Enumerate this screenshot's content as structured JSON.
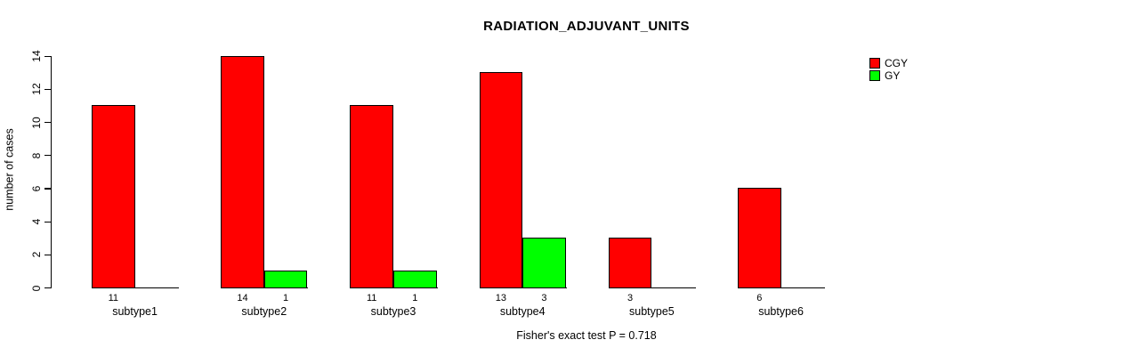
{
  "title": "RADIATION_ADJUVANT_UNITS",
  "footer": "Fisher's exact test P = 0.718",
  "legend": {
    "position": "top-right",
    "items": [
      {
        "label": "CGY",
        "color": "#ff0000"
      },
      {
        "label": "GY",
        "color": "#00ff00"
      }
    ]
  },
  "chart_data": {
    "type": "bar",
    "title": "RADIATION_ADJUVANT_UNITS",
    "xlabel": "",
    "ylabel": "number of cases",
    "categories": [
      "subtype1",
      "subtype2",
      "subtype3",
      "subtype4",
      "subtype5",
      "subtype6"
    ],
    "series": [
      {
        "name": "CGY",
        "color": "#ff0000",
        "values": [
          11,
          14,
          11,
          13,
          3,
          6
        ],
        "labels": [
          "11",
          "14",
          "11",
          "13",
          "3",
          "6"
        ]
      },
      {
        "name": "GY",
        "color": "#00ff00",
        "values": [
          0,
          1,
          1,
          3,
          0,
          0
        ],
        "labels": [
          "",
          "1",
          "1",
          "3",
          "",
          ""
        ]
      }
    ],
    "ylim": [
      0,
      14
    ],
    "yticks": [
      0,
      2,
      4,
      6,
      8,
      10,
      12,
      14
    ],
    "grid": false,
    "legend_position": "top-right",
    "annotation": "Fisher's exact test P = 0.718"
  }
}
